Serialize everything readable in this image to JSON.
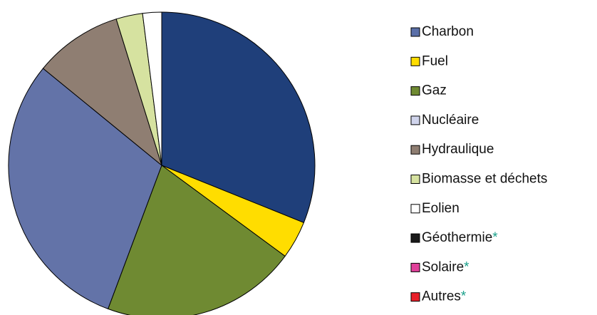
{
  "chart_data": {
    "type": "pie",
    "categories": [
      "Charbon",
      "Fuel",
      "Gaz",
      "Nucléaire",
      "Hydraulique",
      "Biomasse et déchets",
      "Eolien",
      "Géothermie",
      "Solaire",
      "Autres"
    ],
    "values": [
      31.1,
      4.0,
      20.6,
      30.2,
      9.3,
      2.8,
      2.0,
      0,
      0,
      0
    ],
    "colors": [
      "#1f3f7a",
      "#ffdd00",
      "#6f8a32",
      "#6373a8",
      "#8f7e72",
      "#d6e2a0",
      "#ffffff",
      "#1a1a1a",
      "#e0409a",
      "#e8202a"
    ],
    "legend_colors": [
      "#5a6fa8",
      "#ffdd00",
      "#6f8a32",
      "#d0d4ec",
      "#8f7e72",
      "#d6e2a0",
      "#ffffff",
      "#1a1a1a",
      "#e0409a",
      "#e8202a"
    ],
    "footnote_markers": [
      null,
      null,
      null,
      null,
      null,
      null,
      null,
      "*",
      "*",
      "*"
    ],
    "footnote_color": "#1aa08a"
  }
}
